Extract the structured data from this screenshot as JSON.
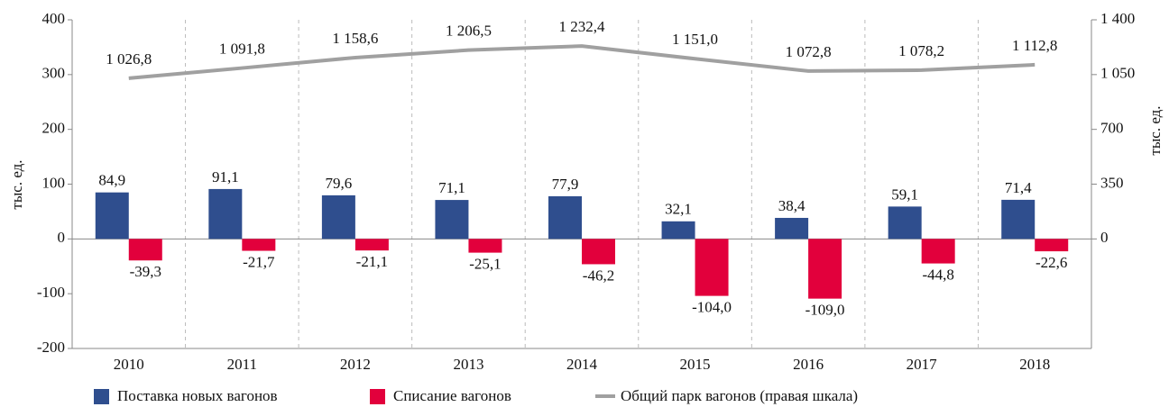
{
  "chart_data": {
    "type": "bar",
    "categories": [
      "2010",
      "2011",
      "2012",
      "2013",
      "2014",
      "2015",
      "2016",
      "2017",
      "2018"
    ],
    "series": [
      {
        "name": "Поставка новых вагонов",
        "color": "#2f4e8e",
        "type": "bar",
        "values": [
          84.9,
          91.1,
          79.6,
          71.1,
          77.9,
          32.1,
          38.4,
          59.1,
          71.4
        ],
        "value_labels": [
          "84,9",
          "91,1",
          "79,6",
          "71,1",
          "77,9",
          "32,1",
          "38,4",
          "59,1",
          "71,4"
        ]
      },
      {
        "name": "Списание вагонов",
        "color": "#e2003c",
        "type": "bar",
        "values": [
          -39.3,
          -21.7,
          -21.1,
          -25.1,
          -46.2,
          -104.0,
          -109.0,
          -44.8,
          -22.6
        ],
        "value_labels": [
          "-39,3",
          "-21,7",
          "-21,1",
          "-25,1",
          "-46,2",
          "-104,0",
          "-109,0",
          "-44,8",
          "-22,6"
        ]
      },
      {
        "name": "Общий парк вагонов (правая шкала)",
        "color": "#a0a0a0",
        "type": "line",
        "axis": "y2",
        "values": [
          1026.8,
          1091.8,
          1158.6,
          1206.5,
          1232.4,
          1151.0,
          1072.8,
          1078.2,
          1112.8
        ],
        "value_labels": [
          "1 026,8",
          "1 091,8",
          "1 158,6",
          "1 206,5",
          "1 232,4",
          "1 151,0",
          "1 072,8",
          "1 078,2",
          "1 112,8"
        ]
      }
    ],
    "ylabel": "тыс. ед.",
    "y2label": "тыс. ед.",
    "ylim": [
      -200,
      400
    ],
    "yticks": [
      -200,
      -100,
      0,
      100,
      200,
      300,
      400
    ],
    "y2lim": [
      -700,
      1400
    ],
    "y2ticks": [
      0,
      350,
      700,
      {
        "value": 1050,
        "label": "1 050"
      },
      {
        "value": 1400,
        "label": "1 400"
      }
    ]
  }
}
